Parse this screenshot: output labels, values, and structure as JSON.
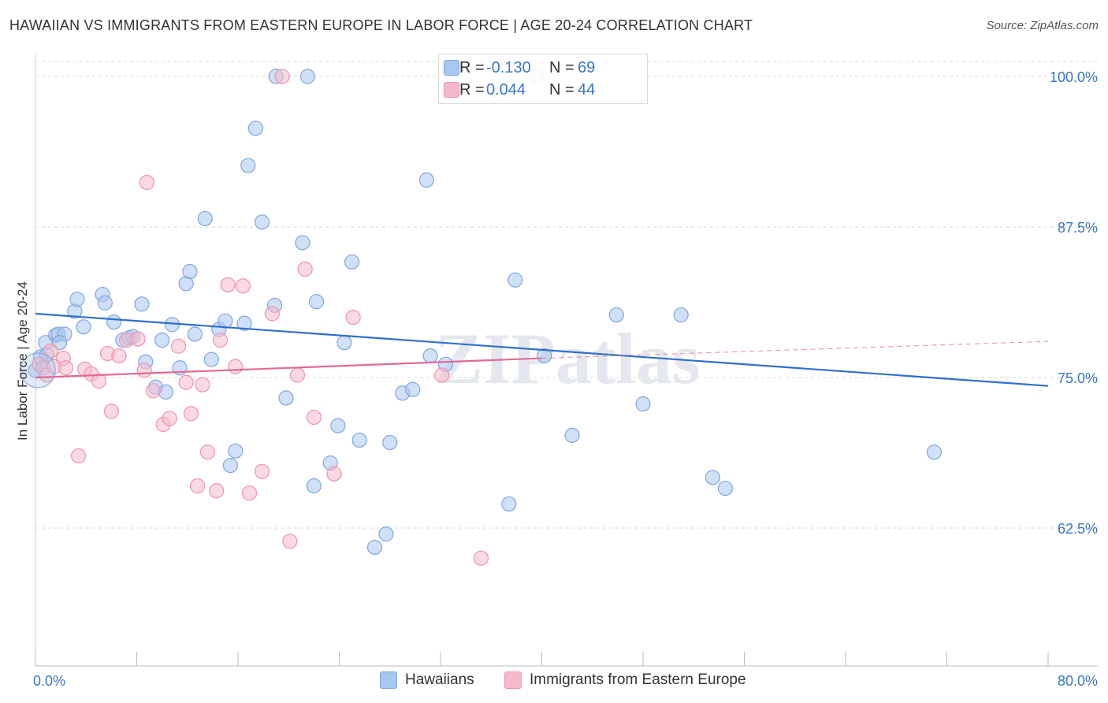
{
  "title": "HAWAIIAN VS IMMIGRANTS FROM EASTERN EUROPE IN LABOR FORCE | AGE 20-24 CORRELATION CHART",
  "source": "Source: ZipAtlas.com",
  "watermark": "ZIPatlas",
  "legend_top": [
    {
      "r_label": "R =",
      "r_value": "-0.130",
      "n_label": "N =",
      "n_value": "69"
    },
    {
      "r_label": "R =",
      "r_value": "0.044",
      "n_label": "N =",
      "n_value": "44"
    }
  ],
  "colors": {
    "blue_fill": "#a9c6ef",
    "blue_stroke": "#7ea6e0",
    "blue_line": "#2f6fcc",
    "pink_fill": "#f5b9cb",
    "pink_stroke": "#ee93ad",
    "pink_line": "#e06b95",
    "tick_label": "#3a75c4",
    "grid": "#d9d9d9"
  },
  "chart_data": {
    "type": "scatter",
    "title": "HAWAIIAN VS IMMIGRANTS FROM EASTERN EUROPE IN LABOR FORCE | AGE 20-24 CORRELATION CHART",
    "xlabel": "",
    "ylabel": "In Labor Force | Age 20-24",
    "xlim": [
      0,
      80
    ],
    "ylim": [
      51.5,
      101.5
    ],
    "x_tick_labels": [
      "0.0%",
      "80.0%"
    ],
    "y_ticks": [
      62.5,
      75.0,
      87.5,
      100.0
    ],
    "y_tick_labels": [
      "62.5%",
      "75.0%",
      "87.5%",
      "100.0%"
    ],
    "grid": true,
    "legend_position": "bottom",
    "series": [
      {
        "name": "Hawaiians",
        "color": "#a9c6ef",
        "trend": {
          "x": [
            0,
            80
          ],
          "y": [
            80.3,
            74.3
          ]
        },
        "points": [
          [
            0.0,
            75.6
          ],
          [
            0.4,
            76.7
          ],
          [
            0.8,
            77.9
          ],
          [
            1.6,
            78.5
          ],
          [
            1.8,
            78.6
          ],
          [
            3.1,
            80.5
          ],
          [
            3.3,
            81.5
          ],
          [
            3.8,
            79.2
          ],
          [
            5.3,
            81.9
          ],
          [
            5.5,
            81.2
          ],
          [
            6.2,
            79.6
          ],
          [
            6.9,
            78.1
          ],
          [
            7.4,
            78.3
          ],
          [
            7.7,
            78.4
          ],
          [
            8.4,
            81.1
          ],
          [
            8.7,
            76.3
          ],
          [
            9.5,
            74.2
          ],
          [
            10.0,
            78.1
          ],
          [
            10.3,
            73.8
          ],
          [
            10.8,
            79.4
          ],
          [
            11.4,
            75.8
          ],
          [
            11.9,
            82.8
          ],
          [
            12.2,
            83.8
          ],
          [
            12.6,
            78.6
          ],
          [
            13.4,
            88.2
          ],
          [
            13.9,
            76.5
          ],
          [
            14.5,
            79.0
          ],
          [
            15.0,
            79.7
          ],
          [
            15.4,
            67.7
          ],
          [
            15.8,
            68.9
          ],
          [
            16.5,
            79.5
          ],
          [
            16.8,
            92.6
          ],
          [
            17.4,
            95.7
          ],
          [
            17.9,
            87.9
          ],
          [
            18.9,
            81.0
          ],
          [
            19.0,
            100.0
          ],
          [
            19.8,
            73.3
          ],
          [
            21.1,
            86.2
          ],
          [
            21.5,
            100.0
          ],
          [
            22.0,
            66.0
          ],
          [
            22.2,
            81.3
          ],
          [
            23.3,
            67.9
          ],
          [
            23.9,
            71.0
          ],
          [
            24.4,
            77.9
          ],
          [
            25.0,
            84.6
          ],
          [
            25.6,
            69.8
          ],
          [
            26.8,
            60.9
          ],
          [
            27.7,
            62.0
          ],
          [
            28.0,
            69.6
          ],
          [
            29.0,
            73.7
          ],
          [
            29.8,
            74.0
          ],
          [
            30.9,
            91.4
          ],
          [
            31.2,
            76.8
          ],
          [
            32.4,
            76.1
          ],
          [
            37.4,
            64.5
          ],
          [
            37.9,
            83.1
          ],
          [
            40.2,
            76.8
          ],
          [
            42.4,
            70.2
          ],
          [
            45.9,
            80.2
          ],
          [
            48.0,
            72.8
          ],
          [
            51.0,
            80.2
          ],
          [
            53.5,
            66.7
          ],
          [
            54.5,
            65.8
          ],
          [
            71.0,
            68.8
          ],
          [
            39.6,
            100.0
          ],
          [
            36.5,
            98.5
          ],
          [
            2.3,
            78.6
          ],
          [
            1.9,
            77.9
          ],
          [
            0.9,
            76.9
          ]
        ]
      },
      {
        "name": "Immigrants from Eastern Europe",
        "color": "#f5b9cb",
        "trend": {
          "x": [
            0,
            40
          ],
          "y": [
            75.0,
            76.6
          ]
        },
        "dashed_extension": {
          "x": [
            40,
            80
          ],
          "y": [
            76.6,
            78.0
          ]
        },
        "points": [
          [
            0.3,
            76.1
          ],
          [
            0.6,
            75.8
          ],
          [
            0.9,
            75.2
          ],
          [
            1.2,
            77.2
          ],
          [
            1.5,
            75.9
          ],
          [
            2.2,
            76.6
          ],
          [
            2.4,
            75.8
          ],
          [
            3.4,
            68.5
          ],
          [
            3.9,
            75.7
          ],
          [
            4.4,
            75.3
          ],
          [
            5.0,
            74.7
          ],
          [
            5.7,
            77.0
          ],
          [
            6.0,
            72.2
          ],
          [
            6.6,
            76.8
          ],
          [
            7.2,
            78.1
          ],
          [
            8.1,
            78.2
          ],
          [
            8.6,
            75.6
          ],
          [
            8.8,
            91.2
          ],
          [
            9.3,
            73.9
          ],
          [
            10.1,
            71.1
          ],
          [
            10.6,
            71.6
          ],
          [
            11.3,
            77.6
          ],
          [
            11.9,
            74.6
          ],
          [
            12.3,
            72.0
          ],
          [
            12.8,
            66.0
          ],
          [
            13.2,
            74.4
          ],
          [
            13.6,
            68.8
          ],
          [
            14.3,
            65.6
          ],
          [
            14.6,
            78.1
          ],
          [
            15.2,
            82.7
          ],
          [
            15.8,
            75.9
          ],
          [
            16.4,
            82.6
          ],
          [
            16.9,
            65.4
          ],
          [
            17.9,
            67.2
          ],
          [
            18.7,
            80.3
          ],
          [
            19.5,
            100.0
          ],
          [
            20.1,
            61.4
          ],
          [
            20.7,
            75.2
          ],
          [
            21.3,
            84.0
          ],
          [
            22.0,
            71.7
          ],
          [
            23.6,
            67.0
          ],
          [
            25.1,
            80.0
          ],
          [
            32.1,
            75.2
          ],
          [
            35.2,
            60.0
          ]
        ]
      }
    ]
  },
  "bottom_legend": [
    "Hawaiians",
    "Immigrants from Eastern Europe"
  ]
}
